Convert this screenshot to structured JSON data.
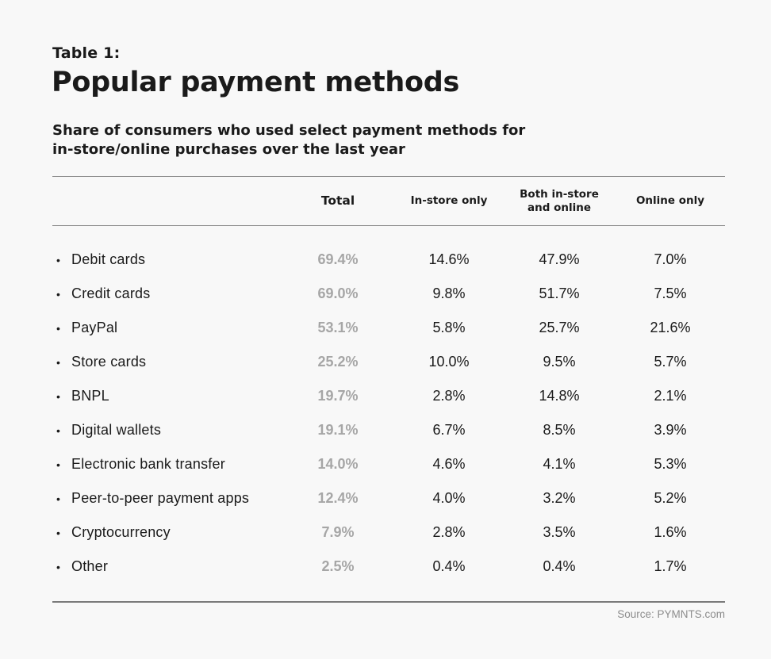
{
  "label": "Table 1:",
  "title": "Popular payment methods",
  "subtitle": [
    "Share of consumers who used select payment methods for",
    "in-store/online purchases over the last year"
  ],
  "source": "Source: PYMNTS.com",
  "colors": {
    "background": "#f8f8f8",
    "text": "#1a1a1a",
    "total_column": "#a6a6a6",
    "rule": "#8a8a8a"
  },
  "chart_data": {
    "type": "table",
    "bullet": "•",
    "columns": [
      {
        "lines": [
          ""
        ]
      },
      {
        "lines": [
          "Total"
        ]
      },
      {
        "lines": [
          "In-store only"
        ]
      },
      {
        "lines": [
          "Both in-store",
          "and online"
        ]
      },
      {
        "lines": [
          "Online only"
        ]
      }
    ],
    "rows": [
      {
        "name": "Debit cards",
        "total": "69.4%",
        "in_store_only": "14.6%",
        "both": "47.9%",
        "online_only": "7.0%"
      },
      {
        "name": "Credit cards",
        "total": "69.0%",
        "in_store_only": "9.8%",
        "both": "51.7%",
        "online_only": "7.5%"
      },
      {
        "name": "PayPal",
        "total": "53.1%",
        "in_store_only": "5.8%",
        "both": "25.7%",
        "online_only": "21.6%"
      },
      {
        "name": "Store cards",
        "total": "25.2%",
        "in_store_only": "10.0%",
        "both": "9.5%",
        "online_only": "5.7%"
      },
      {
        "name": "BNPL",
        "total": "19.7%",
        "in_store_only": "2.8%",
        "both": "14.8%",
        "online_only": "2.1%"
      },
      {
        "name": "Digital wallets",
        "total": "19.1%",
        "in_store_only": "6.7%",
        "both": "8.5%",
        "online_only": "3.9%"
      },
      {
        "name": "Electronic bank transfer",
        "total": "14.0%",
        "in_store_only": "4.6%",
        "both": "4.1%",
        "online_only": "5.3%"
      },
      {
        "name": "Peer-to-peer payment apps",
        "total": "12.4%",
        "in_store_only": "4.0%",
        "both": "3.2%",
        "online_only": "5.2%"
      },
      {
        "name": "Cryptocurrency",
        "total": "7.9%",
        "in_store_only": "2.8%",
        "both": "3.5%",
        "online_only": "1.6%"
      },
      {
        "name": "Other",
        "total": "2.5%",
        "in_store_only": "0.4%",
        "both": "0.4%",
        "online_only": "1.7%"
      }
    ]
  }
}
